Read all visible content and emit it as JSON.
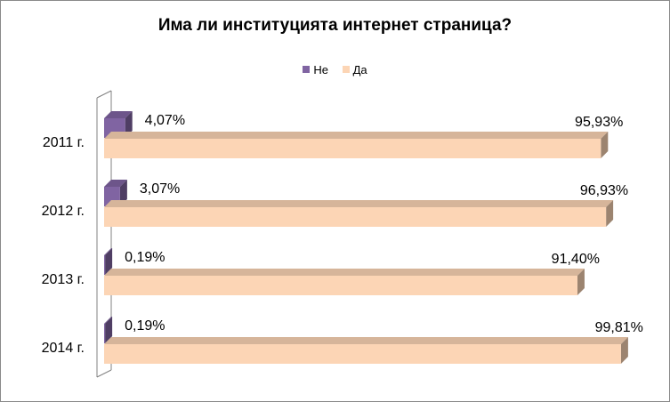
{
  "chart_data": {
    "type": "bar",
    "orientation": "horizontal",
    "style": "3d",
    "title": "Има ли институцията интернет страница?",
    "categories": [
      "2011 г.",
      "2012 г.",
      "2013 г.",
      "2014 г."
    ],
    "series": [
      {
        "name": "Не",
        "color": "#8064a2",
        "values": [
          4.07,
          3.07,
          0.19,
          0.19
        ],
        "labels": [
          "4,07%",
          "3,07%",
          "0,19%",
          "0,19%"
        ]
      },
      {
        "name": "Да",
        "color": "#fcd5b5",
        "values": [
          95.93,
          96.93,
          91.4,
          99.81
        ],
        "labels": [
          "95,93%",
          "96,93%",
          "91,40%",
          "99,81%"
        ]
      }
    ],
    "xlim": [
      0,
      100
    ],
    "legend_position": "top",
    "grid": false
  }
}
